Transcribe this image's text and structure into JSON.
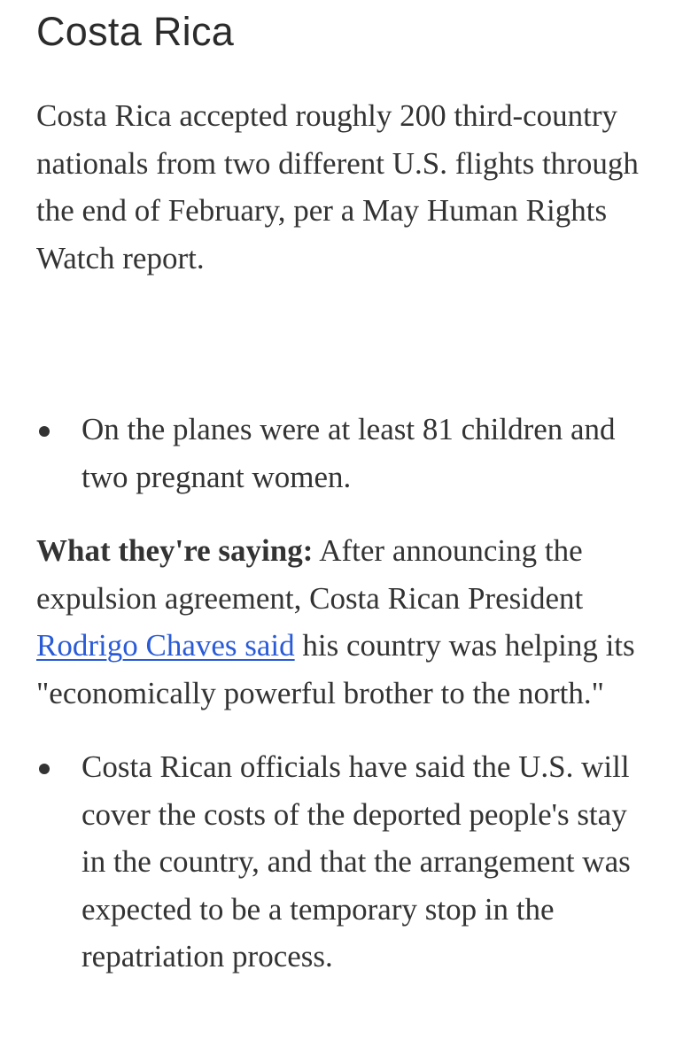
{
  "heading": "Costa Rica",
  "paragraph1": "Costa Rica accepted roughly 200 third-country nationals from two different U.S. flights through the end of February, per a May Human Rights Watch report.",
  "bullet1": "On the planes were at least 81 children and two pregnant women.",
  "paragraph2": {
    "label": "What they're saying:",
    "before_link": " After announcing the expulsion agreement, Costa Rican President ",
    "link_text": "Rodrigo Chaves said",
    "after_link": " his country was helping its \"economically powerful brother to the north.\""
  },
  "bullet2": "Costa Rican officials have said the U.S. will cover the costs of the deported people's stay in the country, and that the arrangement was expected to be a temporary stop in the repatriation process.",
  "colors": {
    "text": "#333333",
    "link": "#2a5bd7"
  }
}
